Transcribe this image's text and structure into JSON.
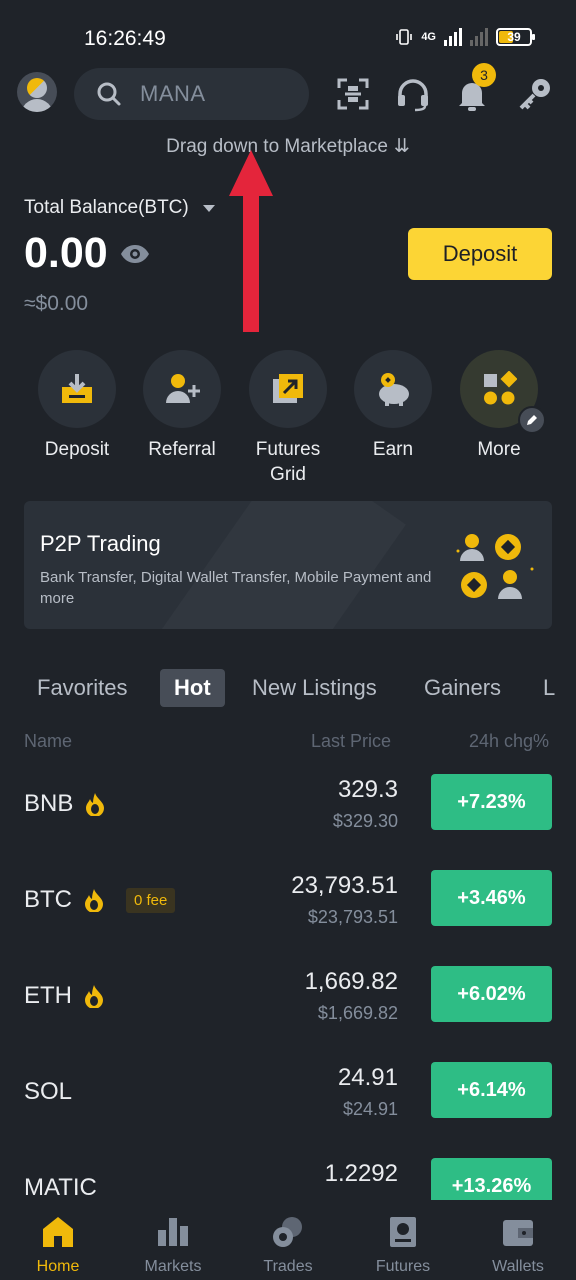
{
  "status": {
    "time": "16:26:49",
    "network": "4G",
    "battery": "39"
  },
  "header": {
    "search_placeholder": "MANA",
    "notification_count": "3",
    "drag_hint": "Drag down to Marketplace"
  },
  "balance": {
    "label": "Total Balance(BTC)",
    "btc_value": "0.00",
    "usd_value": "≈$0.00",
    "deposit_button": "Deposit"
  },
  "quick_actions": [
    {
      "label": "Deposit",
      "icon": "deposit-icon"
    },
    {
      "label": "Referral",
      "icon": "referral-icon"
    },
    {
      "label": "Futures Grid",
      "icon": "futures-grid-icon"
    },
    {
      "label": "Earn",
      "icon": "piggy-bank-icon"
    },
    {
      "label": "More",
      "icon": "more-icon"
    }
  ],
  "p2p_banner": {
    "title": "P2P Trading",
    "subtitle": "Bank Transfer, Digital Wallet Transfer, Mobile Payment and more"
  },
  "market_tabs": [
    "Favorites",
    "Hot",
    "New Listings",
    "Gainers",
    "L"
  ],
  "active_tab": "Hot",
  "columns": {
    "name": "Name",
    "last_price": "Last Price",
    "change": "24h chg%"
  },
  "markets": [
    {
      "symbol": "BNB",
      "hot": true,
      "fee_tag": "",
      "price": "329.3",
      "usd": "$329.30",
      "change": "+7.23%"
    },
    {
      "symbol": "BTC",
      "hot": true,
      "fee_tag": "0 fee",
      "price": "23,793.51",
      "usd": "$23,793.51",
      "change": "+3.46%"
    },
    {
      "symbol": "ETH",
      "hot": true,
      "fee_tag": "",
      "price": "1,669.82",
      "usd": "$1,669.82",
      "change": "+6.02%"
    },
    {
      "symbol": "SOL",
      "hot": false,
      "fee_tag": "",
      "price": "24.91",
      "usd": "$24.91",
      "change": "+6.14%"
    },
    {
      "symbol": "MATIC",
      "hot": false,
      "fee_tag": "",
      "price": "1.2292",
      "usd": "",
      "change": "+13.26%"
    }
  ],
  "bottom_nav": [
    {
      "label": "Home",
      "icon": "home-icon",
      "active": true
    },
    {
      "label": "Markets",
      "icon": "markets-icon",
      "active": false
    },
    {
      "label": "Trades",
      "icon": "trades-icon",
      "active": false
    },
    {
      "label": "Futures",
      "icon": "futures-icon",
      "active": false
    },
    {
      "label": "Wallets",
      "icon": "wallet-icon",
      "active": false
    }
  ],
  "colors": {
    "accent": "#f0b90b",
    "positive": "#2ebd85",
    "background": "#1f2329",
    "surface": "#2b3139",
    "arrow": "#e4253b"
  }
}
